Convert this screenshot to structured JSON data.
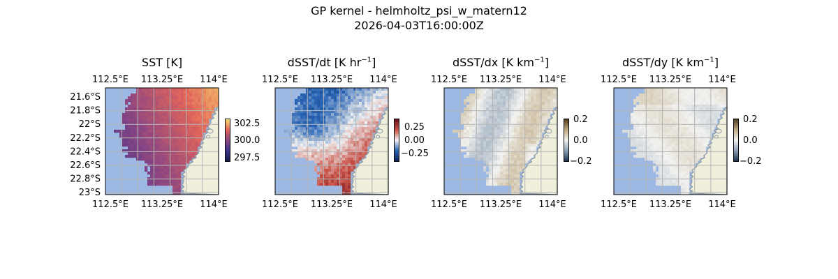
{
  "figure": {
    "title_line1": "GP kernel - helmholtz_psi_w_matern12",
    "title_line2": "2026-04-03T16:00:00Z"
  },
  "colors": {
    "ocean": "#9db9e3",
    "land": "#efefdc",
    "coast": "#8a9aa8",
    "grid": "#b4b4b4"
  },
  "chart_data": [
    {
      "type": "heatmap",
      "title_main": "SST [K]",
      "title_sup": "",
      "title_tail": "",
      "lon_ticks": [
        "112.5°E",
        "113.25°E",
        "114°E"
      ],
      "lat_ticks": [
        "21.6°S",
        "21.8°S",
        "22°S",
        "22.2°S",
        "22.4°S",
        "22.6°S",
        "22.8°S",
        "23°S"
      ],
      "show_lat_ticks": true,
      "lon_range": [
        112.5,
        114.0
      ],
      "lat_range": [
        -23.0,
        -21.5
      ],
      "colormap": "thermal",
      "colorbar_ticks": [
        "302.5",
        "300.0",
        "297.5"
      ],
      "colorbar_range": [
        296.5,
        303.5
      ],
      "grid": true
    },
    {
      "type": "heatmap",
      "title_main": "dSST/dt [K hr",
      "title_sup": "−1",
      "title_tail": "]",
      "lon_ticks": [
        "112.5°E",
        "113.25°E",
        "114°E"
      ],
      "show_lat_ticks": false,
      "lon_range": [
        112.5,
        114.0
      ],
      "lat_range": [
        -23.0,
        -21.5
      ],
      "colormap": "balance",
      "colorbar_ticks": [
        "0.25",
        "0.00",
        "−0.25"
      ],
      "colorbar_range": [
        -0.4,
        0.4
      ],
      "grid": true
    },
    {
      "type": "heatmap",
      "title_main": "dSST/dx [K km",
      "title_sup": "−1",
      "title_tail": "]",
      "lon_ticks": [
        "112.5°E",
        "113.25°E",
        "114°E"
      ],
      "show_lat_ticks": false,
      "lon_range": [
        112.5,
        114.0
      ],
      "lat_range": [
        -23.0,
        -21.5
      ],
      "colormap": "diff",
      "colorbar_ticks": [
        "0.2",
        "0.0",
        "−0.2"
      ],
      "colorbar_range": [
        -0.2,
        0.2
      ],
      "grid": true
    },
    {
      "type": "heatmap",
      "title_main": "dSST/dy [K km",
      "title_sup": "−1",
      "title_tail": "]",
      "lon_ticks": [
        "112.5°E",
        "113.25°E",
        "114°E"
      ],
      "show_lat_ticks": false,
      "lon_range": [
        112.5,
        114.0
      ],
      "lat_range": [
        -23.0,
        -21.5
      ],
      "colormap": "diff",
      "colorbar_ticks": [
        "0.2",
        "0.0",
        "−0.2"
      ],
      "colorbar_range": [
        -0.2,
        0.2
      ],
      "grid": true
    }
  ]
}
